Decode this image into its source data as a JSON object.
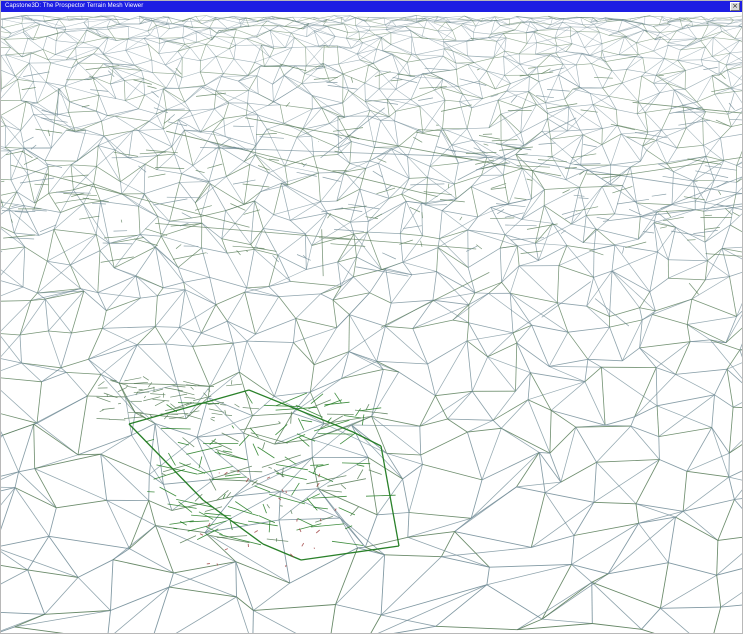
{
  "window": {
    "title": "Capstone3D: The Prospector Terrain Mesh Viewer",
    "close_glyph": "×"
  },
  "viewport": {
    "background": "#ffffff",
    "mesh_colors": {
      "grid_line": "#708b96",
      "terrain_line": "#557a55",
      "highlight_line": "#1f7a1f",
      "feature_mark": "#9b3b3b"
    }
  }
}
